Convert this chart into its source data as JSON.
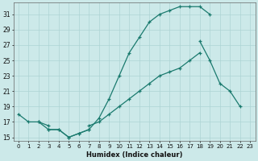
{
  "xlabel": "Humidex (Indice chaleur)",
  "xlim": [
    -0.5,
    23.5
  ],
  "ylim": [
    14.5,
    32.5
  ],
  "xticks": [
    0,
    1,
    2,
    3,
    4,
    5,
    6,
    7,
    8,
    9,
    10,
    11,
    12,
    13,
    14,
    15,
    16,
    17,
    18,
    19,
    20,
    21,
    22,
    23
  ],
  "yticks": [
    15,
    17,
    19,
    21,
    23,
    25,
    27,
    29,
    31
  ],
  "bg_color": "#cce9e9",
  "line_color": "#1a7a6e",
  "grid_color": "#add4d4",
  "curve1_x": [
    0,
    1,
    2,
    3,
    4,
    5,
    6,
    7,
    8,
    9,
    10,
    11,
    12,
    13,
    14,
    15,
    16,
    17,
    18,
    19
  ],
  "curve1_y": [
    18.0,
    17.0,
    17.0,
    16.0,
    16.0,
    15.0,
    15.5,
    16.0,
    17.5,
    20.0,
    23.0,
    26.0,
    28.0,
    30.0,
    31.0,
    31.5,
    32.0,
    32.0,
    32.0,
    31.0
  ],
  "curve2_x": [
    3,
    4,
    5,
    6,
    7
  ],
  "curve2_y": [
    16.0,
    16.0,
    15.0,
    15.5,
    16.0
  ],
  "curve3_x": [
    2,
    3,
    7,
    8,
    9,
    10,
    11,
    12,
    13,
    14,
    15,
    16,
    17,
    18
  ],
  "curve3_y": [
    17.0,
    16.5,
    16.5,
    17.0,
    18.0,
    19.0,
    20.0,
    21.0,
    22.0,
    23.0,
    23.5,
    24.0,
    25.0,
    26.0
  ],
  "curve4_x": [
    18,
    19,
    20,
    21,
    22
  ],
  "curve4_y": [
    27.5,
    25.0,
    22.0,
    21.0,
    19.0
  ]
}
